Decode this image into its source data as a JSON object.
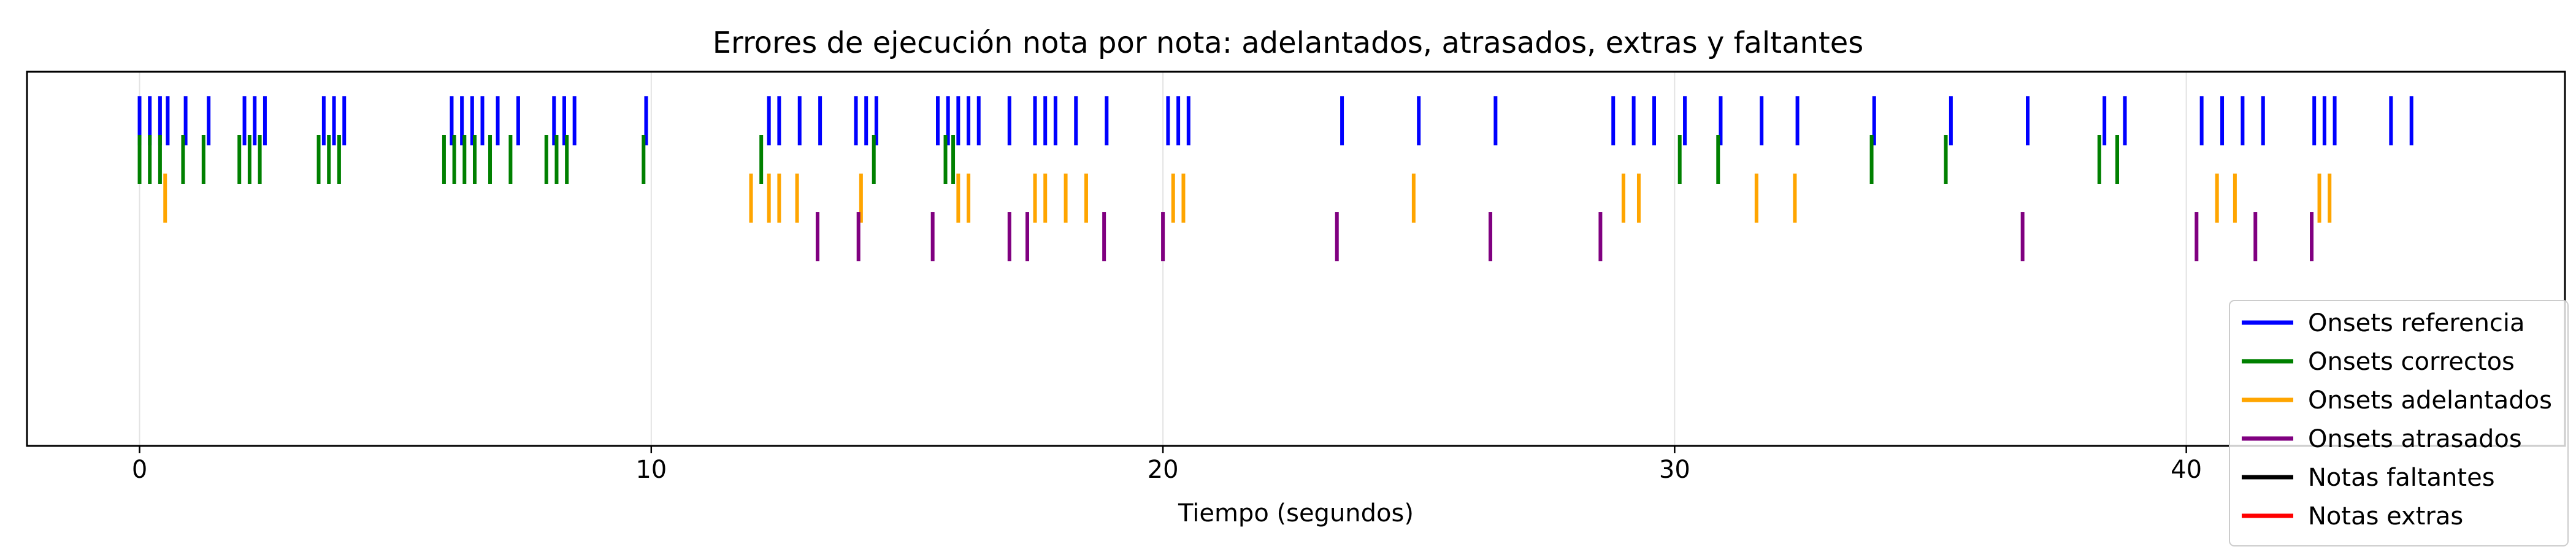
{
  "chart_data": {
    "type": "event",
    "title": "Errores de ejecución nota por nota: adelantados, atrasados, extras y faltantes",
    "xlabel": "Tiempo (segundos)",
    "ylabel": "",
    "xlim": [
      -2.2,
      47.4
    ],
    "xticks": [
      0,
      10,
      20,
      30,
      40
    ],
    "grid": true,
    "legend_position": "bottom-right",
    "series": [
      {
        "name": "Onsets referencia",
        "color": "#0000ff",
        "row": 0,
        "x": [
          0.0,
          0.2,
          0.4,
          0.55,
          0.9,
          1.35,
          2.05,
          2.25,
          2.45,
          3.6,
          3.8,
          4.0,
          6.1,
          6.3,
          6.5,
          6.7,
          7.0,
          7.4,
          8.1,
          8.3,
          8.5,
          9.9,
          12.3,
          12.5,
          12.9,
          13.3,
          14.0,
          14.2,
          14.4,
          15.6,
          15.8,
          16.0,
          16.2,
          16.4,
          17.0,
          17.5,
          17.7,
          17.9,
          18.3,
          18.9,
          20.1,
          20.3,
          20.5,
          23.5,
          25.0,
          26.5,
          28.8,
          29.2,
          29.6,
          30.2,
          30.9,
          31.7,
          32.4,
          33.9,
          35.4,
          36.9,
          38.4,
          38.8,
          40.3,
          40.7,
          41.1,
          41.5,
          42.5,
          42.7,
          42.9,
          44.0,
          44.4
        ]
      },
      {
        "name": "Onsets correctos",
        "color": "#008000",
        "row": 1,
        "x": [
          0.0,
          0.2,
          0.4,
          0.85,
          1.25,
          1.95,
          2.15,
          2.35,
          3.5,
          3.7,
          3.9,
          5.95,
          6.15,
          6.35,
          6.55,
          6.85,
          7.25,
          7.95,
          8.15,
          8.35,
          9.85,
          12.15,
          14.35,
          15.75,
          15.9,
          30.1,
          30.85,
          33.85,
          35.3,
          38.3,
          38.65
        ]
      },
      {
        "name": "Onsets adelantados",
        "color": "#ffa500",
        "row": 2,
        "x": [
          0.5,
          11.95,
          12.3,
          12.5,
          12.85,
          14.1,
          16.0,
          16.2,
          17.5,
          17.7,
          18.1,
          18.5,
          20.2,
          20.4,
          24.9,
          29.0,
          29.3,
          31.6,
          32.35,
          40.6,
          40.95,
          42.6,
          42.8
        ]
      },
      {
        "name": "Onsets atrasados",
        "color": "#800080",
        "row": 3,
        "x": [
          13.25,
          14.05,
          15.5,
          17.0,
          17.35,
          18.85,
          20.0,
          23.4,
          26.4,
          28.55,
          36.8,
          40.2,
          41.35,
          42.45
        ]
      },
      {
        "name": "Notas faltantes",
        "color": "#000000",
        "row": 4,
        "x": []
      },
      {
        "name": "Notas extras",
        "color": "#ff0000",
        "row": 5,
        "x": []
      }
    ]
  }
}
